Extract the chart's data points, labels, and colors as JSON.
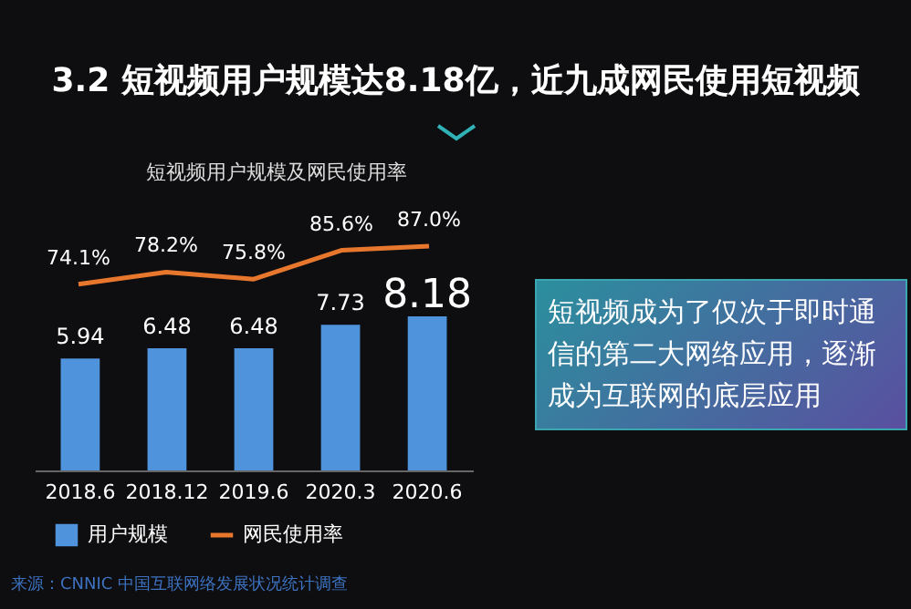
{
  "chart_data": [
    {
      "type": "bar",
      "categories": [
        "2018.6",
        "2018.12",
        "2019.6",
        "2020.3",
        "2020.6"
      ],
      "series": [
        {
          "name": "用户规模",
          "color": "#4f93dc",
          "values": [
            5.94,
            6.48,
            6.48,
            7.73,
            8.18
          ]
        }
      ],
      "data_labels": true,
      "legend": "bottom",
      "tick_labels": "x",
      "annotations": [
        "短视频成为了仅次于即时通信的第二大网络应用，逐渐成为互联网的底层应用",
        "来源：CNNIC 中国互联网络发展状况统计调查"
      ]
    },
    {
      "type": "line",
      "title": "3.2 短视频用户规模达8.18亿，近九成网民使用短视频",
      "subtitle": "短视频用户规模及网民使用率",
      "categories": [
        null,
        null,
        null,
        null,
        null
      ],
      "series": [
        {
          "name": "网民使用率",
          "color": "#e8772e",
          "values": [
            74.1,
            78.2,
            75.8,
            85.6,
            87.0
          ],
          "value_labels": [
            "74.1%",
            "78.2%",
            "75.8%",
            "85.6%",
            "87.0%"
          ]
        }
      ],
      "legend": "bottom",
      "tick_labels": false
    }
  ]
}
